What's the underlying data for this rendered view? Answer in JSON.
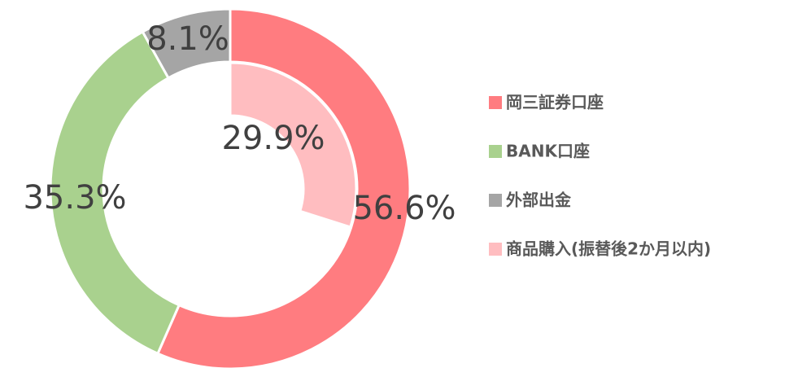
{
  "chart_data": {
    "type": "doughnut",
    "categories": [
      "岡三証券口座",
      "BANK口座",
      "外部出金",
      "商品購入(振替後2か月以内)"
    ],
    "values": [
      56.6,
      35.3,
      8.1,
      29.9
    ],
    "value_labels": [
      "56.6%",
      "35.3%",
      "8.1%",
      "29.9%"
    ],
    "colors": [
      "#ff7c80",
      "#a9d18e",
      "#a5a5a5",
      "#ffbdc0"
    ],
    "ring": [
      "outer",
      "outer",
      "outer",
      "inner"
    ],
    "legend": "right"
  }
}
